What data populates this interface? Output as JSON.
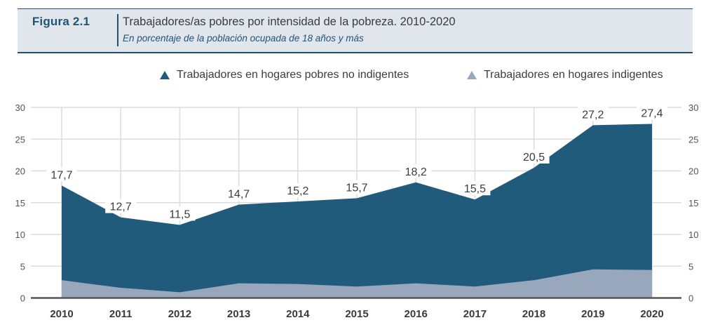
{
  "header": {
    "figure_label": "Figura 2.1",
    "title": "Trabajadores/as pobres por intensidad de la pobreza. 2010-2020",
    "subtitle": "En porcentaje de la población ocupada de 18 años y más"
  },
  "colors": {
    "header_bg": "#e1e5ec",
    "accent": "#23506e",
    "series_dark": "#215b7c",
    "series_light": "#98a7bc",
    "grid": "#dcdcdc",
    "axis": "#555555",
    "text": "#3c3c3c"
  },
  "legend": {
    "items": [
      {
        "label": "Trabajadores en hogares pobres no indigentes",
        "icon": "triangle-dark"
      },
      {
        "label": "Trabajadores en hogares indigentes",
        "icon": "triangle-light"
      }
    ]
  },
  "chart_data": {
    "type": "area",
    "stacked": false,
    "title": "Trabajadores/as pobres por intensidad de la pobreza. 2010-2020",
    "subtitle": "En porcentaje de la población ocupada de 18 años y más",
    "xlabel": "",
    "ylabel": "",
    "categories": [
      "2010",
      "2011",
      "2012",
      "2013",
      "2014",
      "2015",
      "2016",
      "2017",
      "2018",
      "2019",
      "2020"
    ],
    "series": [
      {
        "name": "Trabajadores en hogares pobres no indigentes",
        "note": "total pobres (top of dark area)",
        "values": [
          17.7,
          12.7,
          11.5,
          14.7,
          15.2,
          15.7,
          18.2,
          15.5,
          20.5,
          27.2,
          27.4
        ],
        "data_labels": [
          "17,7",
          "12,7",
          "11,5",
          "14,7",
          "15,2",
          "15,7",
          "18,2",
          "15,5",
          "20,5",
          "27,2",
          "27,4"
        ]
      },
      {
        "name": "Trabajadores en hogares indigentes",
        "values": [
          2.8,
          1.6,
          0.9,
          2.3,
          2.2,
          1.8,
          2.3,
          1.8,
          2.8,
          4.5,
          4.4
        ]
      }
    ],
    "ylim": [
      0,
      30
    ],
    "yticks": [
      0,
      5,
      10,
      15,
      20,
      25,
      30
    ],
    "ytick_labels": [
      "0",
      "5",
      "10",
      "15",
      "20",
      "25",
      "30"
    ],
    "dual_y_axis": true,
    "grid": true,
    "legend_position": "top-right"
  }
}
